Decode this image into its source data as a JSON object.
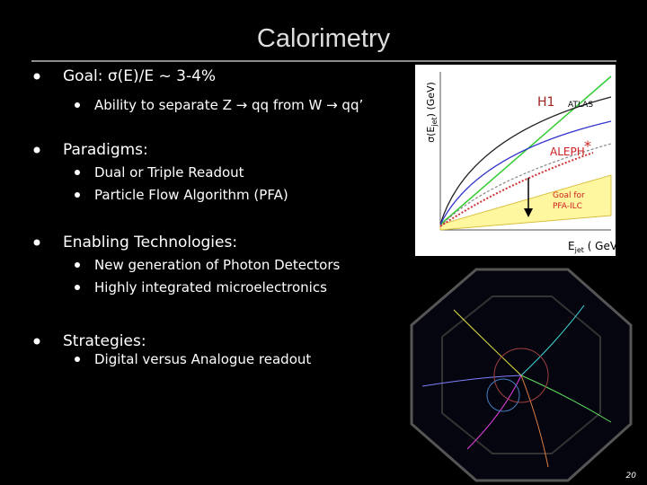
{
  "header": {
    "title": "Calorimetry"
  },
  "bullets": [
    {
      "text": "Goal: σ(E)/E ~ 3-4%",
      "sub": [
        "Ability to separate Z → qq from W → qq’"
      ]
    },
    {
      "text": "Paradigms:",
      "sub": [
        "Dual or Triple Readout",
        "Particle Flow Algorithm (PFA)"
      ]
    },
    {
      "text": "Enabling Technologies:",
      "sub": [
        "New generation of Photon Detectors",
        "Highly integrated microelectronics"
      ]
    },
    {
      "text": "Strategies:",
      "sub": [
        "Digital versus Analogue readout"
      ]
    }
  ],
  "figure": {
    "y_label": {
      "main": "σ(E",
      "sub": "jet",
      "rest": ") (GeV)"
    },
    "x_label": {
      "main": "E",
      "sub": "jet",
      "rest": " ( GeV)"
    },
    "labels": {
      "h1": "H1",
      "atlas": "ATLAS",
      "aleph": "ALEPH",
      "star": "*",
      "goal_1": "Goal for",
      "goal_2": "PFA-ILC"
    }
  },
  "page_number": "20"
}
